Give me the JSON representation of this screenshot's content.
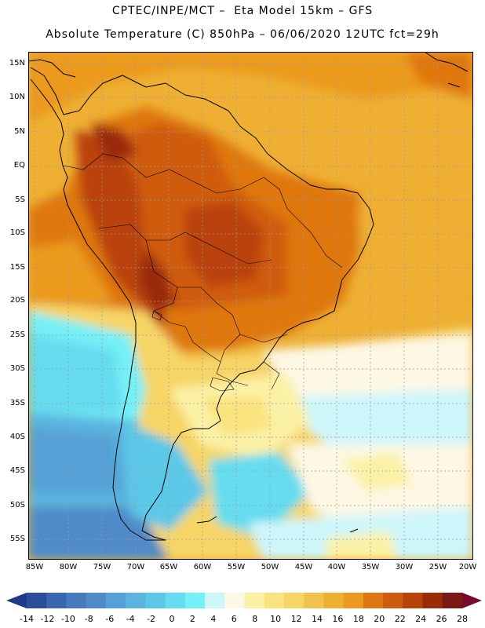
{
  "header": {
    "line1": "CPTEC/INPE/MCT –  Eta Model 15km – GFS",
    "line2": "Absolute Temperature (C) 850hPa – 06/06/2020 12UTC fct=29h"
  },
  "map": {
    "region": "South America",
    "variable": "Absolute Temperature (C) at 850hPa",
    "lat_labels": [
      "15N",
      "10N",
      "5N",
      "EQ",
      "5S",
      "10S",
      "15S",
      "20S",
      "25S",
      "30S",
      "35S",
      "40S",
      "45S",
      "50S",
      "55S"
    ],
    "lon_labels": [
      "85W",
      "80W",
      "75W",
      "70W",
      "65W",
      "60W",
      "55W",
      "50W",
      "45W",
      "40W",
      "35W",
      "30W",
      "25W",
      "20W"
    ]
  },
  "legend": {
    "labels": [
      "-14",
      "-12",
      "-10",
      "-8",
      "-6",
      "-4",
      "-2",
      "0",
      "2",
      "4",
      "6",
      "8",
      "10",
      "12",
      "14",
      "16",
      "18",
      "20",
      "22",
      "24",
      "26",
      "28"
    ],
    "colors": [
      "#2b4e9c",
      "#3a66ae",
      "#4679bd",
      "#4f8bc9",
      "#55a0d6",
      "#5ab4df",
      "#5cc8e8",
      "#65dcef",
      "#75f0f7",
      "#cdf6fb",
      "#fdf8e4",
      "#fbf1a6",
      "#f9e37f",
      "#f6d566",
      "#f2c24c",
      "#eeaf33",
      "#eb9a1e",
      "#df7710",
      "#cf5c0c",
      "#b9420a",
      "#9a2a08",
      "#7a1a14"
    ],
    "under_color": "#1f3a88",
    "over_color": "#7a0a2a"
  }
}
